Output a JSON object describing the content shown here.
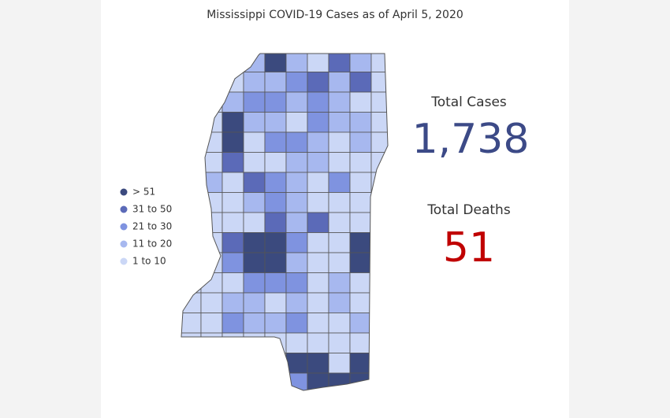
{
  "header": {
    "title": "Mississippi COVID-19 Cases as of April 5, 2020"
  },
  "legend": {
    "items": [
      {
        "label": "> 51",
        "color": "#3b4a7e"
      },
      {
        "label": "31 to 50",
        "color": "#5b6ab8"
      },
      {
        "label": "21 to 30",
        "color": "#7f93e0"
      },
      {
        "label": "11 to 20",
        "color": "#a7b8ef"
      },
      {
        "label": "1 to 10",
        "color": "#cbd7f6"
      }
    ]
  },
  "stats": {
    "cases": {
      "label": "Total Cases",
      "value": "1,738",
      "color": "#3c4a87"
    },
    "deaths": {
      "label": "Total Deaths",
      "value": "51",
      "color": "#c00000"
    }
  }
}
